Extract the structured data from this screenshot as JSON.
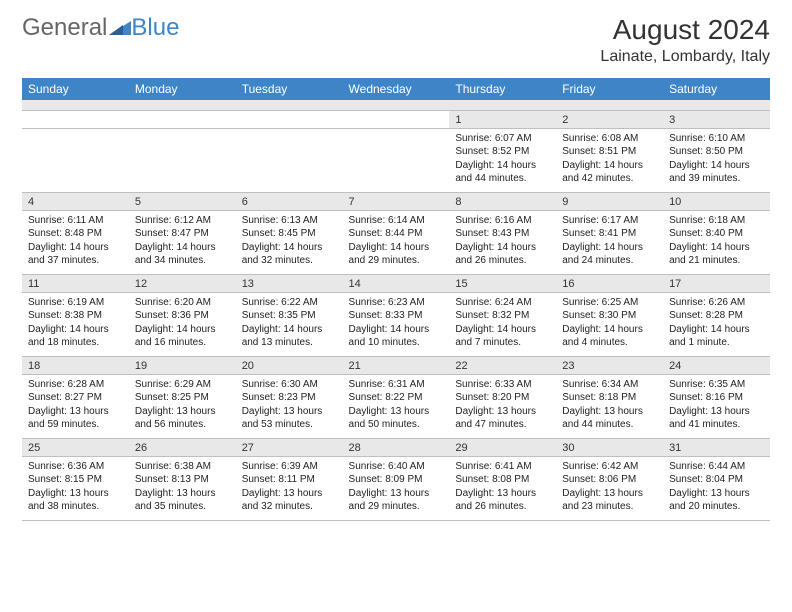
{
  "logo": {
    "general": "General",
    "blue": "Blue"
  },
  "header": {
    "title": "August 2024",
    "location": "Lainate, Lombardy, Italy",
    "title_fontsize": 28,
    "location_fontsize": 16
  },
  "calendar": {
    "type": "table",
    "day_names": [
      "Sunday",
      "Monday",
      "Tuesday",
      "Wednesday",
      "Thursday",
      "Friday",
      "Saturday"
    ],
    "header_bg": "#3d85c6",
    "header_text_color": "#ffffff",
    "daynum_bg": "#e8e8e8",
    "cell_bg": "#ffffff",
    "border_color": "#bfbfbf",
    "text_color": "#222222",
    "daynum_fontsize": 11,
    "cell_fontsize": 10,
    "weeks": [
      [
        null,
        null,
        null,
        null,
        {
          "n": "1",
          "sr": "6:07 AM",
          "ss": "8:52 PM",
          "dl": "14 hours and 44 minutes."
        },
        {
          "n": "2",
          "sr": "6:08 AM",
          "ss": "8:51 PM",
          "dl": "14 hours and 42 minutes."
        },
        {
          "n": "3",
          "sr": "6:10 AM",
          "ss": "8:50 PM",
          "dl": "14 hours and 39 minutes."
        }
      ],
      [
        {
          "n": "4",
          "sr": "6:11 AM",
          "ss": "8:48 PM",
          "dl": "14 hours and 37 minutes."
        },
        {
          "n": "5",
          "sr": "6:12 AM",
          "ss": "8:47 PM",
          "dl": "14 hours and 34 minutes."
        },
        {
          "n": "6",
          "sr": "6:13 AM",
          "ss": "8:45 PM",
          "dl": "14 hours and 32 minutes."
        },
        {
          "n": "7",
          "sr": "6:14 AM",
          "ss": "8:44 PM",
          "dl": "14 hours and 29 minutes."
        },
        {
          "n": "8",
          "sr": "6:16 AM",
          "ss": "8:43 PM",
          "dl": "14 hours and 26 minutes."
        },
        {
          "n": "9",
          "sr": "6:17 AM",
          "ss": "8:41 PM",
          "dl": "14 hours and 24 minutes."
        },
        {
          "n": "10",
          "sr": "6:18 AM",
          "ss": "8:40 PM",
          "dl": "14 hours and 21 minutes."
        }
      ],
      [
        {
          "n": "11",
          "sr": "6:19 AM",
          "ss": "8:38 PM",
          "dl": "14 hours and 18 minutes."
        },
        {
          "n": "12",
          "sr": "6:20 AM",
          "ss": "8:36 PM",
          "dl": "14 hours and 16 minutes."
        },
        {
          "n": "13",
          "sr": "6:22 AM",
          "ss": "8:35 PM",
          "dl": "14 hours and 13 minutes."
        },
        {
          "n": "14",
          "sr": "6:23 AM",
          "ss": "8:33 PM",
          "dl": "14 hours and 10 minutes."
        },
        {
          "n": "15",
          "sr": "6:24 AM",
          "ss": "8:32 PM",
          "dl": "14 hours and 7 minutes."
        },
        {
          "n": "16",
          "sr": "6:25 AM",
          "ss": "8:30 PM",
          "dl": "14 hours and 4 minutes."
        },
        {
          "n": "17",
          "sr": "6:26 AM",
          "ss": "8:28 PM",
          "dl": "14 hours and 1 minute."
        }
      ],
      [
        {
          "n": "18",
          "sr": "6:28 AM",
          "ss": "8:27 PM",
          "dl": "13 hours and 59 minutes."
        },
        {
          "n": "19",
          "sr": "6:29 AM",
          "ss": "8:25 PM",
          "dl": "13 hours and 56 minutes."
        },
        {
          "n": "20",
          "sr": "6:30 AM",
          "ss": "8:23 PM",
          "dl": "13 hours and 53 minutes."
        },
        {
          "n": "21",
          "sr": "6:31 AM",
          "ss": "8:22 PM",
          "dl": "13 hours and 50 minutes."
        },
        {
          "n": "22",
          "sr": "6:33 AM",
          "ss": "8:20 PM",
          "dl": "13 hours and 47 minutes."
        },
        {
          "n": "23",
          "sr": "6:34 AM",
          "ss": "8:18 PM",
          "dl": "13 hours and 44 minutes."
        },
        {
          "n": "24",
          "sr": "6:35 AM",
          "ss": "8:16 PM",
          "dl": "13 hours and 41 minutes."
        }
      ],
      [
        {
          "n": "25",
          "sr": "6:36 AM",
          "ss": "8:15 PM",
          "dl": "13 hours and 38 minutes."
        },
        {
          "n": "26",
          "sr": "6:38 AM",
          "ss": "8:13 PM",
          "dl": "13 hours and 35 minutes."
        },
        {
          "n": "27",
          "sr": "6:39 AM",
          "ss": "8:11 PM",
          "dl": "13 hours and 32 minutes."
        },
        {
          "n": "28",
          "sr": "6:40 AM",
          "ss": "8:09 PM",
          "dl": "13 hours and 29 minutes."
        },
        {
          "n": "29",
          "sr": "6:41 AM",
          "ss": "8:08 PM",
          "dl": "13 hours and 26 minutes."
        },
        {
          "n": "30",
          "sr": "6:42 AM",
          "ss": "8:06 PM",
          "dl": "13 hours and 23 minutes."
        },
        {
          "n": "31",
          "sr": "6:44 AM",
          "ss": "8:04 PM",
          "dl": "13 hours and 20 minutes."
        }
      ]
    ]
  },
  "labels": {
    "sunrise": "Sunrise:",
    "sunset": "Sunset:",
    "daylight": "Daylight:"
  }
}
